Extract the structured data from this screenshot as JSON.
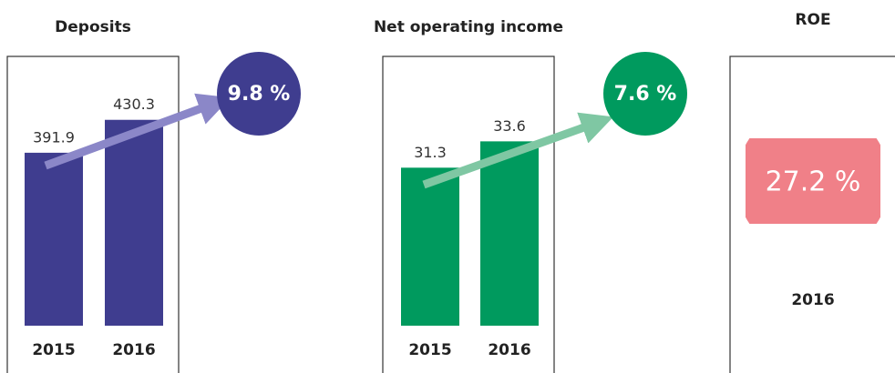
{
  "chart_data": [
    {
      "type": "bar",
      "title": "Deposits",
      "categories": [
        "2015",
        "2016"
      ],
      "values": [
        391.9,
        430.3
      ],
      "color": "#3f3d8f",
      "ylim": [
        190,
        464
      ],
      "growth": {
        "value": 9.8,
        "label": "9.8 %"
      },
      "arrow_color": "#8b87c8"
    },
    {
      "type": "bar",
      "title": "Net operating income",
      "categories": [
        "2015",
        "2016"
      ],
      "values": [
        31.3,
        33.6
      ],
      "color": "#009a5e",
      "ylim": [
        17.5,
        38
      ],
      "growth": {
        "value": 7.6,
        "label": "7.6 %"
      },
      "arrow_color": "#7fc7a3"
    },
    {
      "type": "kpi",
      "title": "ROE",
      "category": "2016",
      "value": 27.2,
      "value_label": "27.2 %",
      "color": "#f08088"
    }
  ]
}
